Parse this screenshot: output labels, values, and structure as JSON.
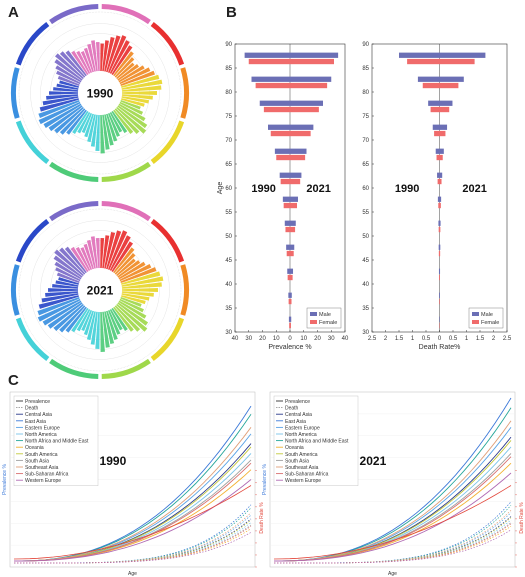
{
  "panels": {
    "a": "A",
    "b": "B",
    "c": "C"
  },
  "palette": {
    "regions": [
      "#e83030",
      "#f08a24",
      "#e8d62a",
      "#9fd84a",
      "#4ecb78",
      "#44d1d8",
      "#3a8fe0",
      "#2a48c8",
      "#7a6ac8",
      "#e070b8"
    ],
    "male": "#6b6fb5",
    "female": "#f06b6b"
  },
  "chart_data": [
    {
      "type": "bar",
      "subtype": "circular-bar",
      "panel": "A",
      "center_label": "1990",
      "note": "Circular bar chart of countries grouped by region; bar lengths approximate.",
      "series": [
        {
          "values": [
            0.55,
            0.62,
            0.7,
            0.76,
            0.8,
            0.74,
            0.68,
            0.6,
            0.52,
            0.45,
            0.5,
            0.58,
            0.66,
            0.72,
            0.78,
            0.82,
            0.79,
            0.7,
            0.62,
            0.55,
            0.48,
            0.42,
            0.5,
            0.6,
            0.7,
            0.75,
            0.66,
            0.58,
            0.5,
            0.44,
            0.5,
            0.57,
            0.63,
            0.7,
            0.77,
            0.72,
            0.64,
            0.56,
            0.48,
            0.42,
            0.46,
            0.52,
            0.6,
            0.68,
            0.74,
            0.8,
            0.85,
            0.9,
            0.86,
            0.8,
            0.72,
            0.64,
            0.58,
            0.5,
            0.44,
            0.4,
            0.45,
            0.52,
            0.58,
            0.66,
            0.72,
            0.68,
            0.62,
            0.55,
            0.5,
            0.46,
            0.5,
            0.56,
            0.62,
            0.58
          ]
        }
      ]
    },
    {
      "type": "bar",
      "subtype": "circular-bar",
      "panel": "A",
      "center_label": "2021",
      "series": [
        {
          "values": [
            0.6,
            0.66,
            0.74,
            0.8,
            0.84,
            0.78,
            0.7,
            0.62,
            0.55,
            0.48,
            0.53,
            0.6,
            0.68,
            0.75,
            0.8,
            0.84,
            0.8,
            0.72,
            0.64,
            0.56,
            0.5,
            0.44,
            0.52,
            0.62,
            0.72,
            0.78,
            0.68,
            0.6,
            0.52,
            0.46,
            0.52,
            0.6,
            0.66,
            0.72,
            0.8,
            0.74,
            0.66,
            0.58,
            0.5,
            0.44,
            0.48,
            0.55,
            0.62,
            0.7,
            0.76,
            0.82,
            0.87,
            0.92,
            0.88,
            0.82,
            0.74,
            0.66,
            0.6,
            0.52,
            0.46,
            0.42,
            0.47,
            0.54,
            0.6,
            0.68,
            0.74,
            0.7,
            0.64,
            0.57,
            0.52,
            0.48,
            0.52,
            0.58,
            0.64,
            0.6
          ]
        }
      ]
    },
    {
      "type": "bar",
      "subtype": "population-pyramid",
      "panel": "B",
      "xlabel": "Prevalence %",
      "ylabel": "Age",
      "left_label": "1990",
      "right_label": "2021",
      "xlim": [
        -40,
        40
      ],
      "xticks": [
        "40",
        "30",
        "20",
        "10",
        "0",
        "10",
        "20",
        "30",
        "40"
      ],
      "ylim": [
        30,
        90
      ],
      "yticks": [
        "30",
        "35",
        "40",
        "45",
        "50",
        "55",
        "60",
        "65",
        "70",
        "75",
        "80",
        "85",
        "90"
      ],
      "ages": [
        32,
        37,
        42,
        47,
        52,
        57,
        62,
        67,
        72,
        77,
        82,
        87
      ],
      "series": [
        {
          "name": "Male",
          "left": [
            0.8,
            1.2,
            2.0,
            2.8,
            3.8,
            5.2,
            7.5,
            11,
            16,
            22,
            28,
            33
          ],
          "right": [
            0.9,
            1.3,
            2.2,
            3.1,
            4.2,
            5.8,
            8.3,
            12,
            17,
            24,
            30,
            35
          ]
        },
        {
          "name": "Female",
          "left": [
            0.6,
            1.0,
            1.7,
            2.4,
            3.3,
            4.6,
            6.8,
            10,
            14,
            19,
            25,
            30
          ],
          "right": [
            0.7,
            1.1,
            1.9,
            2.7,
            3.7,
            5.1,
            7.4,
            11,
            15,
            21,
            27,
            32
          ]
        }
      ],
      "legend": [
        "Male",
        "Female"
      ],
      "legend_position": "bottom-right"
    },
    {
      "type": "bar",
      "subtype": "population-pyramid",
      "panel": "B",
      "xlabel": "Death Rate%",
      "ylabel": "",
      "left_label": "1990",
      "right_label": "2021",
      "xlim": [
        -2.5,
        2.5
      ],
      "xticks": [
        "2.5",
        "2",
        "1.5",
        "1",
        "0.5",
        "0",
        "0.5",
        "1",
        "1.5",
        "2",
        "2.5"
      ],
      "ylim": [
        30,
        90
      ],
      "yticks": [
        "30",
        "35",
        "40",
        "45",
        "50",
        "55",
        "60",
        "65",
        "70",
        "75",
        "80",
        "85",
        "90"
      ],
      "ages": [
        32,
        37,
        42,
        47,
        52,
        57,
        62,
        67,
        72,
        77,
        82,
        87
      ],
      "series": [
        {
          "name": "Male",
          "left": [
            0.01,
            0.015,
            0.02,
            0.03,
            0.04,
            0.06,
            0.09,
            0.14,
            0.25,
            0.42,
            0.8,
            1.5
          ],
          "right": [
            0.01,
            0.015,
            0.02,
            0.03,
            0.04,
            0.06,
            0.1,
            0.16,
            0.28,
            0.48,
            0.9,
            1.7
          ]
        },
        {
          "name": "Female",
          "left": [
            0.008,
            0.012,
            0.016,
            0.024,
            0.03,
            0.045,
            0.07,
            0.11,
            0.2,
            0.33,
            0.62,
            1.2
          ],
          "right": [
            0.008,
            0.012,
            0.016,
            0.024,
            0.032,
            0.05,
            0.075,
            0.12,
            0.22,
            0.36,
            0.7,
            1.3
          ]
        }
      ],
      "legend": [
        "Male",
        "Female"
      ],
      "legend_position": "bottom-right"
    },
    {
      "type": "line",
      "panel": "C",
      "title_inset": "1990",
      "xlabel": "Age",
      "ylabel": "Prevalence %",
      "y2label": "Death Rate %",
      "legend": [
        "Prevalence",
        "Death",
        "Central Asia",
        "East Asia",
        "Eastern Europe",
        "North America",
        "North Africa and Middle East",
        "Oceania",
        "South America",
        "South Asia",
        "Southeast Asia",
        "Sub-Saharan Africa",
        "Western Europe"
      ],
      "legend_position": "top-left",
      "note": "Curves rise steeply with age; relative end levels approximate.",
      "series": [
        {
          "name": "Central Asia",
          "end": 0.72
        },
        {
          "name": "East Asia",
          "end": 0.95
        },
        {
          "name": "Eastern Europe",
          "end": 0.78
        },
        {
          "name": "North America",
          "end": 0.66
        },
        {
          "name": "North Africa and Middle East",
          "end": 0.9
        },
        {
          "name": "Oceania",
          "end": 0.56
        },
        {
          "name": "South America",
          "end": 0.7
        },
        {
          "name": "South Asia",
          "end": 0.62
        },
        {
          "name": "Southeast Asia",
          "end": 0.82
        },
        {
          "name": "Sub-Saharan Africa",
          "end": 0.6
        },
        {
          "name": "Western Europe",
          "end": 0.5
        }
      ]
    },
    {
      "type": "line",
      "panel": "C",
      "title_inset": "2021",
      "xlabel": "Age",
      "ylabel": "Prevalence %",
      "y2label": "Death Rate %",
      "legend": [
        "Prevalence",
        "Death",
        "Central Asia",
        "East Asia",
        "Eastern Europe",
        "North America",
        "North Africa and Middle East",
        "Oceania",
        "South America",
        "South Asia",
        "Southeast Asia",
        "Sub-Saharan Africa",
        "Western Europe"
      ],
      "legend_position": "top-left",
      "series": [
        {
          "name": "Central Asia",
          "end": 0.76
        },
        {
          "name": "East Asia",
          "end": 1.0
        },
        {
          "name": "Eastern Europe",
          "end": 0.82
        },
        {
          "name": "North America",
          "end": 0.7
        },
        {
          "name": "North Africa and Middle East",
          "end": 0.94
        },
        {
          "name": "Oceania",
          "end": 0.6
        },
        {
          "name": "South America",
          "end": 0.74
        },
        {
          "name": "South Asia",
          "end": 0.66
        },
        {
          "name": "Southeast Asia",
          "end": 0.86
        },
        {
          "name": "Sub-Saharan Africa",
          "end": 0.64
        },
        {
          "name": "Western Europe",
          "end": 0.54
        }
      ]
    }
  ]
}
